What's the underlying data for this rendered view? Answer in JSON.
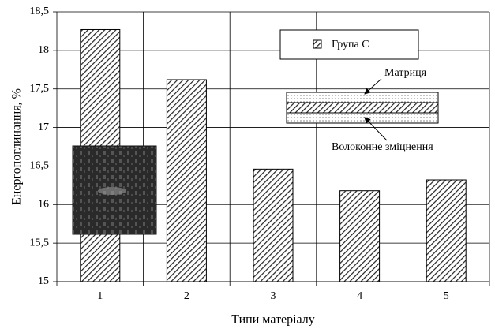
{
  "chart_data": {
    "type": "bar",
    "y_label": "Енергопоглинання, %",
    "x_label": "Типи матеріалу",
    "categories": [
      "1",
      "2",
      "3",
      "4",
      "5"
    ],
    "series": [
      {
        "name": "Група С",
        "color": "#333333",
        "values": [
          18.27,
          17.62,
          16.46,
          16.18,
          16.32
        ]
      }
    ],
    "ylim": [
      15,
      18.5
    ],
    "yticks": [
      15,
      {
        "value": 15.5,
        "label": "15,5"
      },
      16,
      {
        "value": 16.5,
        "label": "16,5"
      },
      17,
      {
        "value": 17.5,
        "label": "17,5"
      },
      18,
      {
        "value": 18.5,
        "label": "18,5"
      }
    ],
    "grid": true,
    "legend": "top-right",
    "annotations": [
      "Матриця",
      "Волоконне зміцнення"
    ]
  }
}
